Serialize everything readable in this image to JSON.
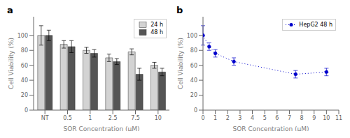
{
  "chart_data": [
    {
      "type": "bar",
      "title": "a",
      "categories": [
        "NT",
        "0.5",
        "1",
        "2.5",
        "7.5",
        "10"
      ],
      "series": [
        {
          "name": "24 h",
          "color": "#d3d3d3",
          "values": [
            100,
            88,
            80,
            70,
            78,
            60
          ],
          "errors": [
            13,
            5,
            4,
            5,
            4,
            4
          ]
        },
        {
          "name": "48 h",
          "color": "#555555",
          "values": [
            100,
            85,
            76,
            65,
            48,
            51
          ],
          "errors": [
            7,
            8,
            5,
            4,
            8,
            5
          ]
        }
      ],
      "xlabel": "SOR Concentration (μM)",
      "ylabel": "Cell Viability (%)",
      "ylim": [
        0,
        125
      ],
      "yticks": [
        0,
        20,
        40,
        60,
        80,
        100
      ],
      "legend": "upper right",
      "grid": false
    },
    {
      "type": "line",
      "title": "b",
      "x": [
        0,
        0.5,
        1,
        2.5,
        7.5,
        10
      ],
      "series": [
        {
          "name": "HepG2 48 h",
          "color": "#0000cc",
          "marker": "circle",
          "line_style": "dotted",
          "values": [
            100,
            85,
            76,
            65,
            48,
            51
          ],
          "errors": [
            13,
            5,
            5,
            5,
            5,
            5
          ]
        }
      ],
      "xlabel": "SOR Concentration (μM)",
      "ylabel": "Cell Viability (%)",
      "xlim": [
        0,
        11
      ],
      "ylim": [
        0,
        125
      ],
      "xticks": [
        0,
        1,
        2,
        3,
        4,
        5,
        6,
        7,
        8,
        9,
        10,
        11
      ],
      "yticks": [
        0,
        20,
        40,
        60,
        80,
        100
      ],
      "legend": "upper right",
      "grid": false
    }
  ]
}
